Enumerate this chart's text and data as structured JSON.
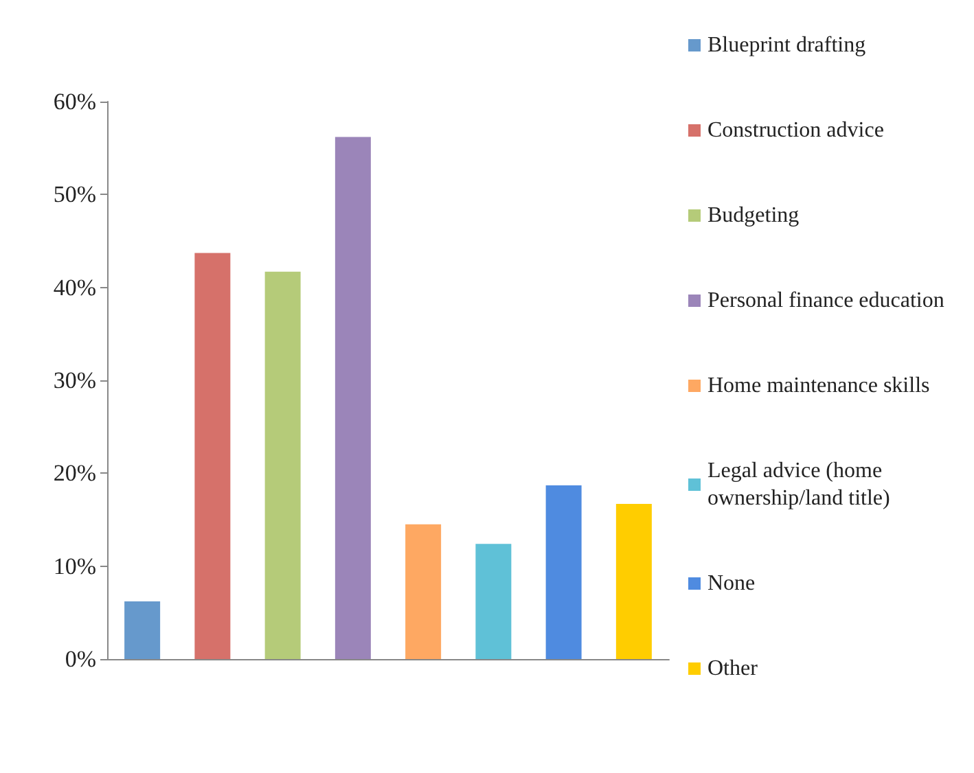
{
  "chart_data": {
    "type": "bar",
    "categories": [
      null,
      null,
      null,
      null,
      null,
      null,
      null,
      null
    ],
    "series": [
      {
        "name": "Blueprint drafting",
        "color": "#6699cc",
        "values": [
          6.2,
          null,
          null,
          null,
          null,
          null,
          null,
          null
        ]
      },
      {
        "name": "Construction advice",
        "color": "#d6716a",
        "values": [
          null,
          43.7,
          null,
          null,
          null,
          null,
          null,
          null
        ]
      },
      {
        "name": "Budgeting",
        "color": "#b5cb79",
        "values": [
          null,
          null,
          41.7,
          null,
          null,
          null,
          null,
          null
        ]
      },
      {
        "name": "Personal finance education",
        "color": "#9b85b9",
        "values": [
          null,
          null,
          null,
          56.2,
          null,
          null,
          null,
          null
        ]
      },
      {
        "name": "Home maintenance skills",
        "color": "#fea862",
        "values": [
          null,
          null,
          null,
          null,
          14.5,
          null,
          null,
          null
        ]
      },
      {
        "name": "Legal advice (home ownership/land title)",
        "color": "#5fc1d7",
        "values": [
          null,
          null,
          null,
          null,
          null,
          12.4,
          null,
          null
        ]
      },
      {
        "name": "None",
        "color": "#4f8be0",
        "values": [
          null,
          null,
          null,
          null,
          null,
          null,
          18.7,
          null
        ]
      },
      {
        "name": "Other",
        "color": "#ffcd00",
        "values": [
          null,
          null,
          null,
          null,
          null,
          null,
          null,
          16.7
        ]
      }
    ],
    "ylim": [
      0,
      60
    ],
    "yticks": [
      {
        "value": 0,
        "label": "0%"
      },
      {
        "value": 10,
        "label": "10%"
      },
      {
        "value": 20,
        "label": "20%"
      },
      {
        "value": 30,
        "label": "30%"
      },
      {
        "value": 40,
        "label": "40%"
      },
      {
        "value": 50,
        "label": "50%"
      },
      {
        "value": 60,
        "label": "60%"
      }
    ],
    "tick_labels": "y",
    "grid": false,
    "legend": "right"
  }
}
